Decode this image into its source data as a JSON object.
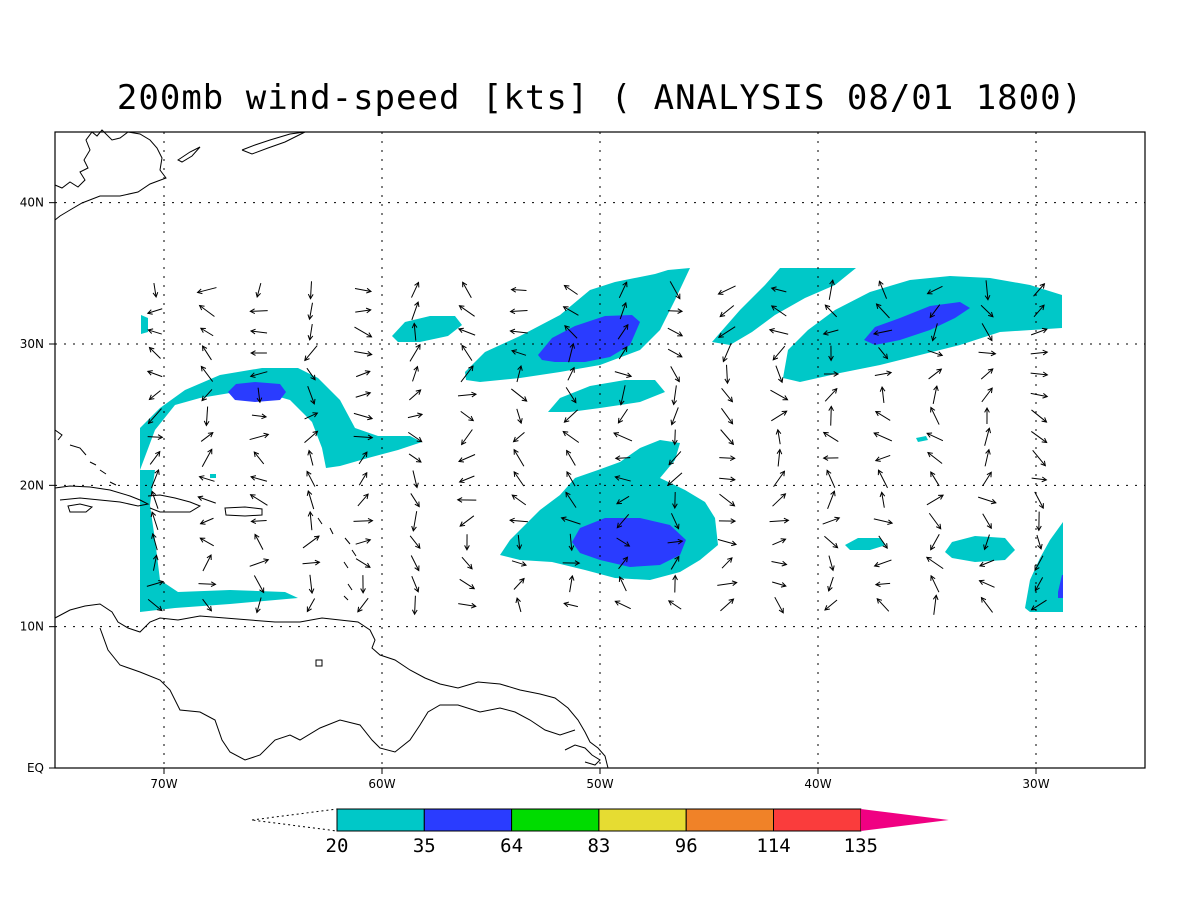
{
  "title": "200mb wind-speed [kts] ( ANALYSIS 08/01 1800)",
  "map": {
    "lon_range": [
      -75,
      -25
    ],
    "lat_range": [
      0,
      45
    ],
    "lat_ticks": [
      {
        "lat": 40,
        "label": "40N"
      },
      {
        "lat": 30,
        "label": "30N"
      },
      {
        "lat": 20,
        "label": "20N"
      },
      {
        "lat": 10,
        "label": "10N"
      },
      {
        "lat": 0,
        "label": "EQ"
      }
    ],
    "lon_ticks": [
      {
        "lon": -70,
        "label": "70W"
      },
      {
        "lon": -60,
        "label": "60W"
      },
      {
        "lon": -50,
        "label": "50W"
      },
      {
        "lon": -40,
        "label": "40W"
      },
      {
        "lon": -30,
        "label": "30W"
      }
    ],
    "grid": "dotted"
  },
  "colorbar": {
    "levels": [
      "20",
      "35",
      "64",
      "83",
      "96",
      "114",
      "135"
    ],
    "colors": [
      "#00c8c8",
      "#2a3cff",
      "#00dc00",
      "#e6dc32",
      "#f08228",
      "#fa3c3c",
      "#f00082"
    ]
  }
}
